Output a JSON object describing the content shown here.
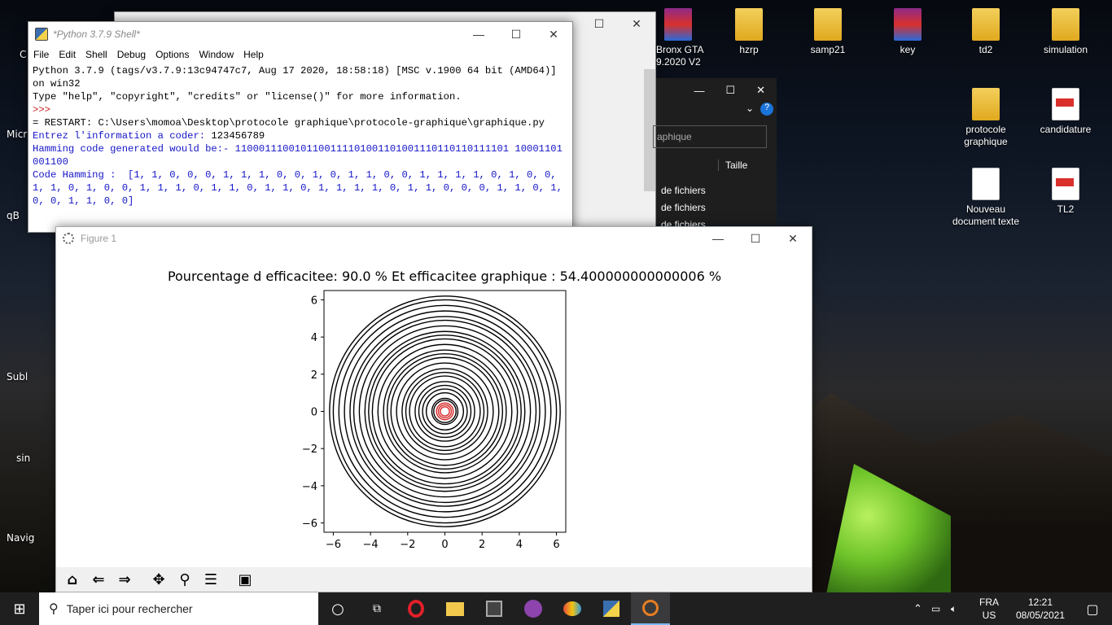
{
  "desktop": {
    "icons": [
      {
        "label": "Bronx GTA",
        "label2": "9.2020 V2",
        "type": "winrar"
      },
      {
        "label": "hzrp",
        "label2": "",
        "type": "folder"
      },
      {
        "label": "samp21",
        "label2": "",
        "type": "folder"
      },
      {
        "label": "key",
        "label2": "",
        "type": "winrar"
      },
      {
        "label": "td2",
        "label2": "",
        "type": "folder"
      },
      {
        "label": "simulation",
        "label2": "",
        "type": "folder"
      },
      {
        "label": "protocole",
        "label2": "graphique",
        "type": "folder"
      },
      {
        "label": "candidature",
        "label2": "",
        "type": "pdf"
      },
      {
        "label": "Nouveau",
        "label2": "document texte",
        "type": "doc"
      },
      {
        "label": "TL2",
        "label2": "",
        "type": "pdf"
      }
    ],
    "left_labels": [
      "C",
      "Micr",
      "qB",
      "Subl",
      "sin",
      "Navig"
    ]
  },
  "explorer": {
    "search_placeholder": "aphique",
    "col_size": "Taille",
    "rows": [
      "de fichiers",
      "de fichiers",
      "de fichiers"
    ]
  },
  "shell": {
    "title": "*Python 3.7.9 Shell*",
    "menu": [
      "File",
      "Edit",
      "Shell",
      "Debug",
      "Options",
      "Window",
      "Help"
    ],
    "lines": [
      {
        "t": "Python 3.7.9 (tags/v3.7.9:13c94747c7, Aug 17 2020, 18:58:18) [MSC v.1900 64 bit (AMD64)] on win32",
        "c": ""
      },
      {
        "t": "Type \"help\", \"copyright\", \"credits\" or \"license()\" for more information.",
        "c": ""
      },
      {
        "t": ">>> ",
        "c": "red"
      },
      {
        "t": "= RESTART: C:\\Users\\momoa\\Desktop\\protocole graphique\\protocole-graphique\\graphique.py",
        "c": ""
      },
      {
        "t": "Entrez l'information a coder: ",
        "c": "blue",
        "extra": "123456789"
      },
      {
        "t": "Hamming code generated would be:- 1100011100101100111101001101001110110110111101 10001101001100",
        "c": "blue"
      },
      {
        "t": "Code Hamming :  [1, 1, 0, 0, 0, 1, 1, 1, 0, 0, 1, 0, 1, 1, 0, 0, 1, 1, 1, 1, 0, 1, 0, 0, 1, 1, 0, 1, 0, 0, 1, 1, 1, 0, 1, 1, 0, 1, 1, 0, 1, 1, 1, 1, 0, 1, 1, 0, 0, 0, 1, 1, 0, 1, 0, 0, 1, 1, 0, 0]",
        "c": "blue"
      }
    ]
  },
  "figure": {
    "title": "Figure 1",
    "toolbar": [
      "home",
      "back",
      "forward",
      "pan",
      "zoom",
      "configure",
      "save"
    ]
  },
  "chart_data": {
    "type": "line",
    "title": "Pourcentage d efficacitee: 90.0 % Et efficacitee graphique : 54.400000000000006 %",
    "xlim": [
      -6.5,
      6.5
    ],
    "ylim": [
      -6.5,
      6.5
    ],
    "xticks": [
      "−6",
      "−4",
      "−2",
      "0",
      "2",
      "4",
      "6"
    ],
    "yticks": [
      "6",
      "4",
      "2",
      "0",
      "−2",
      "−4",
      "−6"
    ],
    "red_radii": [
      0.25,
      0.35,
      0.45
    ],
    "black_radii": [
      0.6,
      0.7,
      1.0,
      1.2,
      1.4,
      1.6,
      1.9,
      2.1,
      2.3,
      2.6,
      2.9,
      3.1,
      3.3,
      3.6,
      3.9,
      4.1,
      4.3,
      4.6,
      4.9,
      5.1,
      5.4,
      5.7,
      6.0,
      6.2
    ],
    "colors": {
      "red": "#d62728",
      "black": "#000000"
    }
  },
  "taskbar": {
    "search": "Taper ici pour rechercher",
    "lang1": "FRA",
    "lang2": "US",
    "time": "12:21",
    "date": "08/05/2021"
  }
}
